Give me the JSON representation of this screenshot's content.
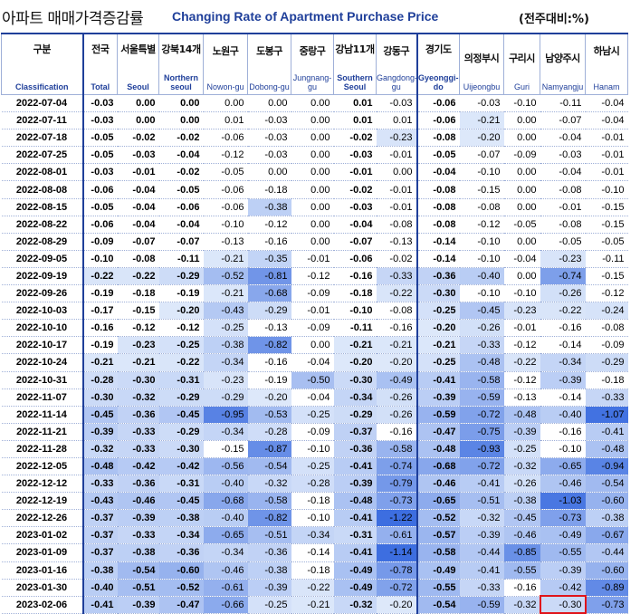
{
  "title": {
    "korean": "아파트 매매가격증감률",
    "english": "Changing Rate of Apartment Purchase Price",
    "unit": "(전주대비:%)"
  },
  "columns": [
    {
      "ko": "구분",
      "en": "Classification"
    },
    {
      "ko": "전국",
      "en": "Total"
    },
    {
      "ko": "서울특별",
      "en": "Seoul"
    },
    {
      "ko": "강북14개",
      "en": "Northern seoul"
    },
    {
      "ko": "노원구",
      "en": "Nowon-gu"
    },
    {
      "ko": "도봉구",
      "en": "Dobong-gu"
    },
    {
      "ko": "중랑구",
      "en": "Jungnang-gu"
    },
    {
      "ko": "강남11개",
      "en": "Southern Seoul"
    },
    {
      "ko": "강동구",
      "en": "Gangdong-gu"
    },
    {
      "ko": "경기도",
      "en": "Gyeonggi-do"
    },
    {
      "ko": "의정부시",
      "en": "Uijeongbu"
    },
    {
      "ko": "구리시",
      "en": "Guri"
    },
    {
      "ko": "남양주시",
      "en": "Namyangju"
    },
    {
      "ko": "하남시",
      "en": "Hanam"
    }
  ],
  "rows": [
    {
      "date": "2022-07-04",
      "v": [
        "-0.03",
        "0.00",
        "0.00",
        "0.00",
        "0.00",
        "0.00",
        "0.01",
        "-0.03",
        "-0.06",
        "-0.03",
        "-0.10",
        "-0.11",
        "-0.04"
      ]
    },
    {
      "date": "2022-07-11",
      "v": [
        "-0.03",
        "0.00",
        "0.00",
        "0.01",
        "-0.03",
        "0.00",
        "0.01",
        "0.01",
        "-0.06",
        "-0.21",
        "0.00",
        "-0.07",
        "-0.04"
      ]
    },
    {
      "date": "2022-07-18",
      "v": [
        "-0.05",
        "-0.02",
        "-0.02",
        "-0.06",
        "-0.03",
        "0.00",
        "-0.02",
        "-0.23",
        "-0.08",
        "-0.20",
        "0.00",
        "-0.04",
        "-0.01"
      ]
    },
    {
      "date": "2022-07-25",
      "v": [
        "-0.05",
        "-0.03",
        "-0.04",
        "-0.12",
        "-0.03",
        "0.00",
        "-0.03",
        "-0.01",
        "-0.05",
        "-0.07",
        "-0.09",
        "-0.03",
        "-0.01"
      ]
    },
    {
      "date": "2022-08-01",
      "v": [
        "-0.03",
        "-0.01",
        "-0.02",
        "-0.05",
        "0.00",
        "0.00",
        "-0.01",
        "0.00",
        "-0.04",
        "-0.10",
        "0.00",
        "-0.04",
        "-0.01"
      ]
    },
    {
      "date": "2022-08-08",
      "v": [
        "-0.06",
        "-0.04",
        "-0.05",
        "-0.06",
        "-0.18",
        "0.00",
        "-0.02",
        "-0.01",
        "-0.08",
        "-0.15",
        "0.00",
        "-0.08",
        "-0.10"
      ]
    },
    {
      "date": "2022-08-15",
      "v": [
        "-0.05",
        "-0.04",
        "-0.06",
        "-0.06",
        "-0.38",
        "0.00",
        "-0.03",
        "-0.01",
        "-0.08",
        "-0.08",
        "0.00",
        "-0.01",
        "-0.15"
      ]
    },
    {
      "date": "2022-08-22",
      "v": [
        "-0.06",
        "-0.04",
        "-0.04",
        "-0.10",
        "-0.12",
        "0.00",
        "-0.04",
        "-0.08",
        "-0.08",
        "-0.12",
        "-0.05",
        "-0.08",
        "-0.15"
      ]
    },
    {
      "date": "2022-08-29",
      "v": [
        "-0.09",
        "-0.07",
        "-0.07",
        "-0.13",
        "-0.16",
        "0.00",
        "-0.07",
        "-0.13",
        "-0.14",
        "-0.10",
        "0.00",
        "-0.05",
        "-0.05"
      ]
    },
    {
      "date": "2022-09-05",
      "v": [
        "-0.10",
        "-0.08",
        "-0.11",
        "-0.21",
        "-0.35",
        "-0.01",
        "-0.06",
        "-0.02",
        "-0.14",
        "-0.10",
        "-0.04",
        "-0.23",
        "-0.11"
      ]
    },
    {
      "date": "2022-09-19",
      "v": [
        "-0.22",
        "-0.22",
        "-0.29",
        "-0.52",
        "-0.81",
        "-0.12",
        "-0.16",
        "-0.33",
        "-0.36",
        "-0.40",
        "0.00",
        "-0.74",
        "-0.15"
      ]
    },
    {
      "date": "2022-09-26",
      "v": [
        "-0.19",
        "-0.18",
        "-0.19",
        "-0.21",
        "-0.68",
        "-0.09",
        "-0.18",
        "-0.22",
        "-0.30",
        "-0.10",
        "-0.10",
        "-0.26",
        "-0.12"
      ]
    },
    {
      "date": "2022-10-03",
      "v": [
        "-0.17",
        "-0.15",
        "-0.20",
        "-0.43",
        "-0.29",
        "-0.01",
        "-0.10",
        "-0.08",
        "-0.25",
        "-0.45",
        "-0.23",
        "-0.22",
        "-0.24"
      ]
    },
    {
      "date": "2022-10-10",
      "v": [
        "-0.16",
        "-0.12",
        "-0.12",
        "-0.25",
        "-0.13",
        "-0.09",
        "-0.11",
        "-0.16",
        "-0.20",
        "-0.26",
        "-0.01",
        "-0.16",
        "-0.08"
      ]
    },
    {
      "date": "2022-10-17",
      "v": [
        "-0.19",
        "-0.23",
        "-0.25",
        "-0.38",
        "-0.82",
        "0.00",
        "-0.21",
        "-0.21",
        "-0.21",
        "-0.33",
        "-0.12",
        "-0.14",
        "-0.09"
      ]
    },
    {
      "date": "2022-10-24",
      "v": [
        "-0.21",
        "-0.21",
        "-0.22",
        "-0.34",
        "-0.16",
        "-0.04",
        "-0.20",
        "-0.20",
        "-0.25",
        "-0.48",
        "-0.22",
        "-0.34",
        "-0.29"
      ]
    },
    {
      "date": "2022-10-31",
      "v": [
        "-0.28",
        "-0.30",
        "-0.31",
        "-0.23",
        "-0.19",
        "-0.50",
        "-0.30",
        "-0.49",
        "-0.41",
        "-0.58",
        "-0.12",
        "-0.39",
        "-0.18"
      ]
    },
    {
      "date": "2022-11-07",
      "v": [
        "-0.30",
        "-0.32",
        "-0.29",
        "-0.29",
        "-0.20",
        "-0.04",
        "-0.34",
        "-0.26",
        "-0.39",
        "-0.59",
        "-0.13",
        "-0.14",
        "-0.33"
      ]
    },
    {
      "date": "2022-11-14",
      "v": [
        "-0.45",
        "-0.36",
        "-0.45",
        "-0.95",
        "-0.53",
        "-0.25",
        "-0.29",
        "-0.26",
        "-0.59",
        "-0.72",
        "-0.48",
        "-0.40",
        "-1.07"
      ]
    },
    {
      "date": "2022-11-21",
      "v": [
        "-0.39",
        "-0.33",
        "-0.29",
        "-0.34",
        "-0.28",
        "-0.09",
        "-0.37",
        "-0.16",
        "-0.47",
        "-0.75",
        "-0.39",
        "-0.16",
        "-0.41"
      ]
    },
    {
      "date": "2022-11-28",
      "v": [
        "-0.32",
        "-0.33",
        "-0.30",
        "-0.15",
        "-0.87",
        "-0.10",
        "-0.36",
        "-0.58",
        "-0.48",
        "-0.93",
        "-0.25",
        "-0.10",
        "-0.48"
      ]
    },
    {
      "date": "2022-12-05",
      "v": [
        "-0.48",
        "-0.42",
        "-0.42",
        "-0.56",
        "-0.54",
        "-0.25",
        "-0.41",
        "-0.74",
        "-0.68",
        "-0.72",
        "-0.32",
        "-0.65",
        "-0.94"
      ]
    },
    {
      "date": "2022-12-12",
      "v": [
        "-0.33",
        "-0.36",
        "-0.31",
        "-0.40",
        "-0.32",
        "-0.28",
        "-0.39",
        "-0.79",
        "-0.46",
        "-0.41",
        "-0.26",
        "-0.46",
        "-0.54"
      ]
    },
    {
      "date": "2022-12-19",
      "v": [
        "-0.43",
        "-0.46",
        "-0.45",
        "-0.68",
        "-0.58",
        "-0.18",
        "-0.48",
        "-0.73",
        "-0.65",
        "-0.51",
        "-0.38",
        "-1.03",
        "-0.60"
      ]
    },
    {
      "date": "2022-12-26",
      "v": [
        "-0.37",
        "-0.39",
        "-0.38",
        "-0.40",
        "-0.82",
        "-0.10",
        "-0.41",
        "-1.22",
        "-0.52",
        "-0.32",
        "-0.45",
        "-0.73",
        "-0.38"
      ]
    },
    {
      "date": "2023-01-02",
      "v": [
        "-0.37",
        "-0.33",
        "-0.34",
        "-0.65",
        "-0.51",
        "-0.34",
        "-0.31",
        "-0.61",
        "-0.57",
        "-0.39",
        "-0.46",
        "-0.49",
        "-0.67"
      ]
    },
    {
      "date": "2023-01-09",
      "v": [
        "-0.37",
        "-0.38",
        "-0.36",
        "-0.34",
        "-0.36",
        "-0.14",
        "-0.41",
        "-1.14",
        "-0.58",
        "-0.44",
        "-0.85",
        "-0.55",
        "-0.44"
      ]
    },
    {
      "date": "2023-01-16",
      "v": [
        "-0.38",
        "-0.54",
        "-0.60",
        "-0.46",
        "-0.38",
        "-0.18",
        "-0.49",
        "-0.78",
        "-0.49",
        "-0.41",
        "-0.55",
        "-0.39",
        "-0.60"
      ]
    },
    {
      "date": "2023-01-30",
      "v": [
        "-0.40",
        "-0.51",
        "-0.52",
        "-0.61",
        "-0.39",
        "-0.22",
        "-0.49",
        "-0.72",
        "-0.55",
        "-0.33",
        "-0.16",
        "-0.42",
        "-0.89"
      ]
    },
    {
      "date": "2023-02-06",
      "v": [
        "-0.41",
        "-0.39",
        "-0.47",
        "-0.66",
        "-0.25",
        "-0.21",
        "-0.32",
        "-0.20",
        "-0.54",
        "-0.59",
        "-0.32",
        "-0.30",
        "-0.73"
      ]
    }
  ],
  "highlight": {
    "row": 29,
    "col": 12,
    "color": "#e0141a"
  },
  "colors": {
    "accent": "#1f3f9a",
    "shade_light": "#dde8fa",
    "shade_dark": "#3d6ee0"
  }
}
